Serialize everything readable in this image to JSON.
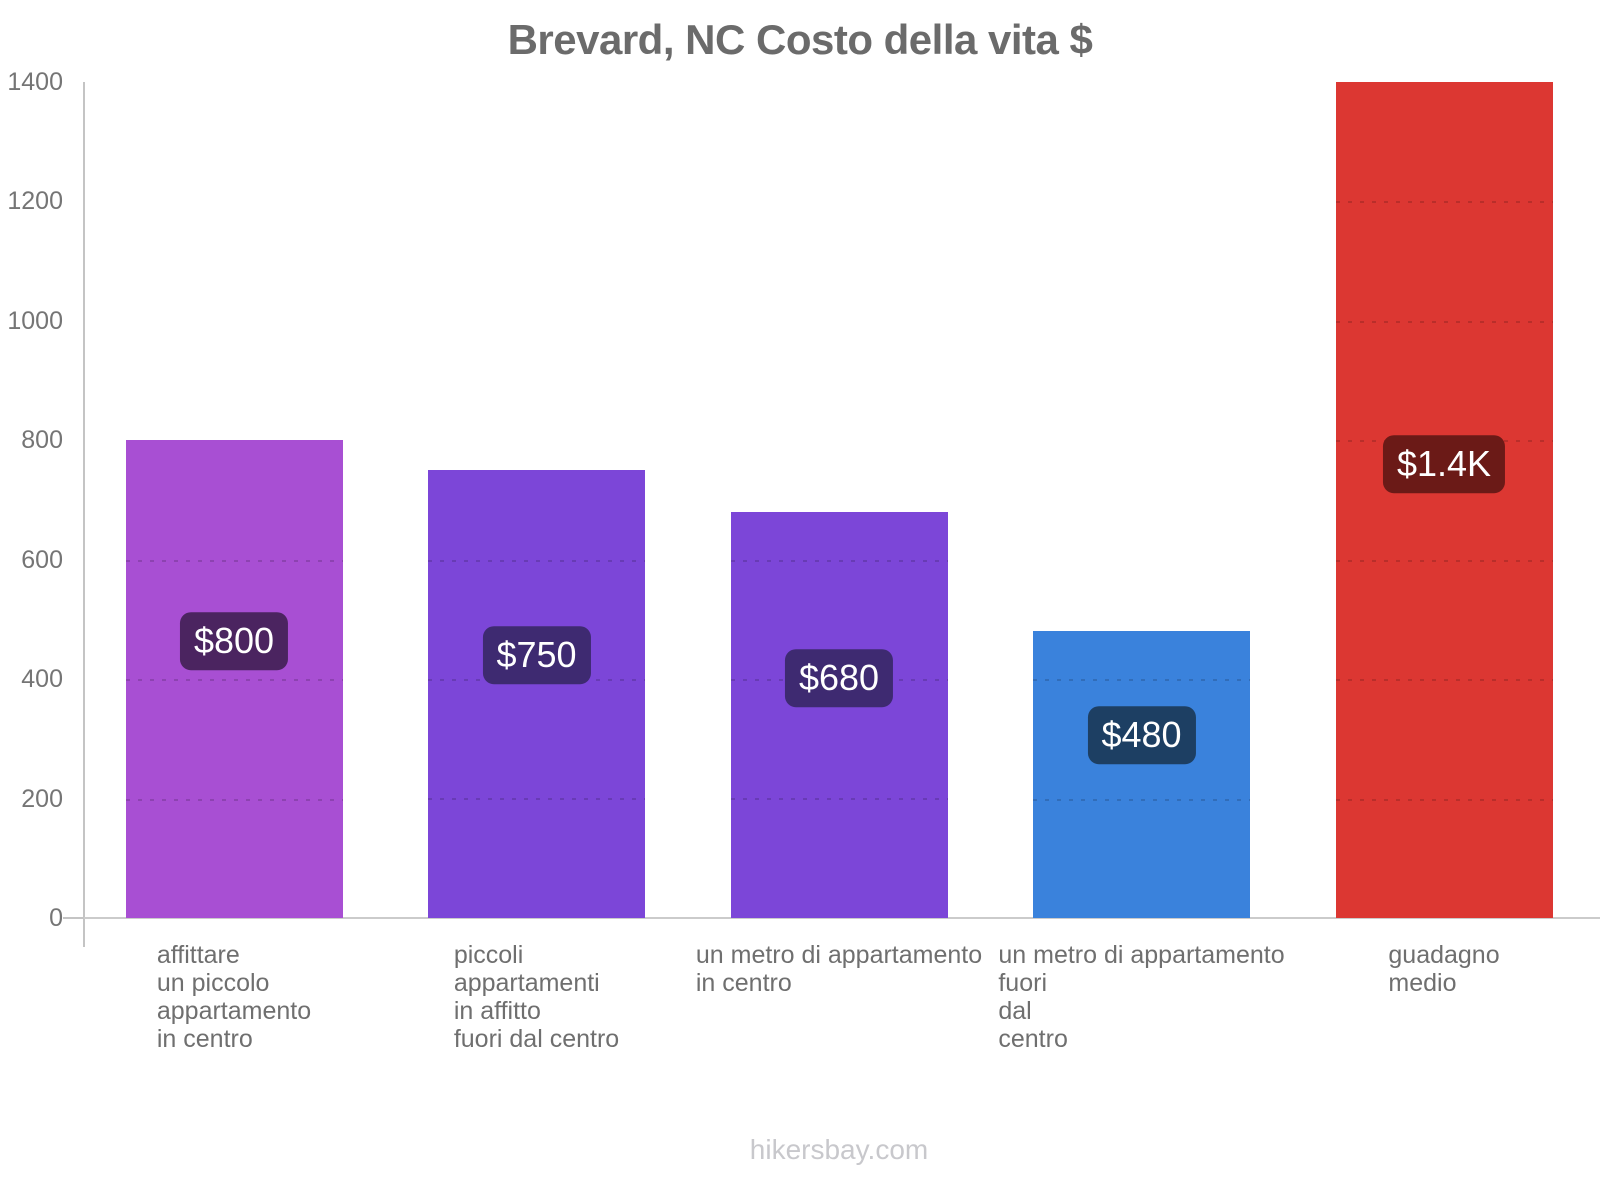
{
  "page": {
    "title": "Brevard, NC Costo della vita $",
    "footer": "hikersbay.com"
  },
  "chart_data": {
    "type": "bar",
    "title": "Brevard, NC Costo della vita $",
    "categories": [
      "affittare un piccolo appartamento in centro",
      "piccoli appartamenti in affitto fuori dal centro",
      "un metro di appartamento in centro",
      "un metro di appartamento fuori dal centro",
      "guadagno medio"
    ],
    "category_lines": [
      [
        "affittare",
        "un piccolo",
        "appartamento",
        "in centro"
      ],
      [
        "piccoli",
        "appartamenti",
        "in affitto",
        "fuori dal centro"
      ],
      [
        "un metro di appartamento",
        "in centro"
      ],
      [
        "un metro di appartamento",
        "fuori",
        "dal",
        "centro"
      ],
      [
        "guadagno",
        "medio"
      ]
    ],
    "values": [
      800,
      750,
      680,
      480,
      1400
    ],
    "value_labels": [
      "$800",
      "$750",
      "$680",
      "$480",
      "$1.4K"
    ],
    "bar_colors": [
      "#a84fd3",
      "#7c46d8",
      "#7c46d8",
      "#3a82dc",
      "#dc3732"
    ],
    "badge_colors": [
      "#4b2460",
      "#3e2a71",
      "#3e2a71",
      "#1d3f63",
      "#6b1a17"
    ],
    "badge_text_color": "#ffffff",
    "title_color": "#6b6b6b",
    "axis_text_color": "#757575",
    "category_text_color": "#6f6f6f",
    "axis_line_color": "#c4c4c4",
    "footer_color": "#c8c8cc",
    "currency": "$",
    "ylim": [
      0,
      1400
    ],
    "yticks": [
      0,
      200,
      400,
      600,
      800,
      1000,
      1200,
      1400
    ],
    "grid": "horizontal-dotted-over-bars",
    "legend": "none",
    "xlabel": "",
    "ylabel": "",
    "footer": "hikersbay.com"
  }
}
